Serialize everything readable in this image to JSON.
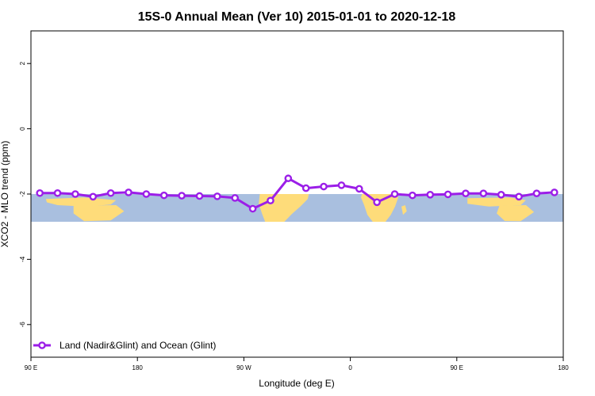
{
  "chart_data": {
    "type": "line",
    "title": "15S-0 Annual Mean (Ver 10)   2015-01-01 to 2020-12-18",
    "xlabel": "Longitude (deg E)",
    "ylabel": "XCO2 - MLO trend (ppm)",
    "xlim": [
      90,
      450
    ],
    "ylim": [
      -7,
      3
    ],
    "x_ticks": [
      {
        "value": 90,
        "label": "90 E"
      },
      {
        "value": 162,
        "label": "180"
      },
      {
        "value": 234,
        "label": "90 W"
      },
      {
        "value": 306,
        "label": "0"
      },
      {
        "value": 378,
        "label": "90 E"
      },
      {
        "value": 450,
        "label": "180"
      }
    ],
    "y_ticks": [
      {
        "value": 2,
        "label": "2"
      },
      {
        "value": 0,
        "label": "0"
      },
      {
        "value": -2,
        "label": "-2"
      },
      {
        "value": -4,
        "label": "-4"
      },
      {
        "value": -6,
        "label": "-6"
      }
    ],
    "band": {
      "y_top": -2.0,
      "y_bottom": -2.85,
      "color": "#a9bfdf",
      "land_color": "#fedc7a"
    },
    "legend_position": "bottom-left",
    "series": [
      {
        "name": "Land (Nadir&Glint) and Ocean (Glint)",
        "color": "#9b1ee8",
        "x": [
          96,
          108,
          120,
          132,
          144,
          156,
          168,
          180,
          192,
          204,
          216,
          228,
          240,
          252,
          264,
          276,
          288,
          300,
          312,
          324,
          336,
          348,
          360,
          372,
          384,
          396,
          408,
          420,
          432,
          444
        ],
        "y": [
          -1.97,
          -1.97,
          -2.0,
          -2.08,
          -1.97,
          -1.95,
          -2.0,
          -2.04,
          -2.05,
          -2.06,
          -2.07,
          -2.12,
          -2.45,
          -2.2,
          -1.52,
          -1.82,
          -1.77,
          -1.73,
          -1.84,
          -2.25,
          -2.0,
          -2.04,
          -2.02,
          -2.01,
          -1.98,
          -1.98,
          -2.02,
          -2.08,
          -1.98,
          -1.95
        ]
      }
    ]
  }
}
